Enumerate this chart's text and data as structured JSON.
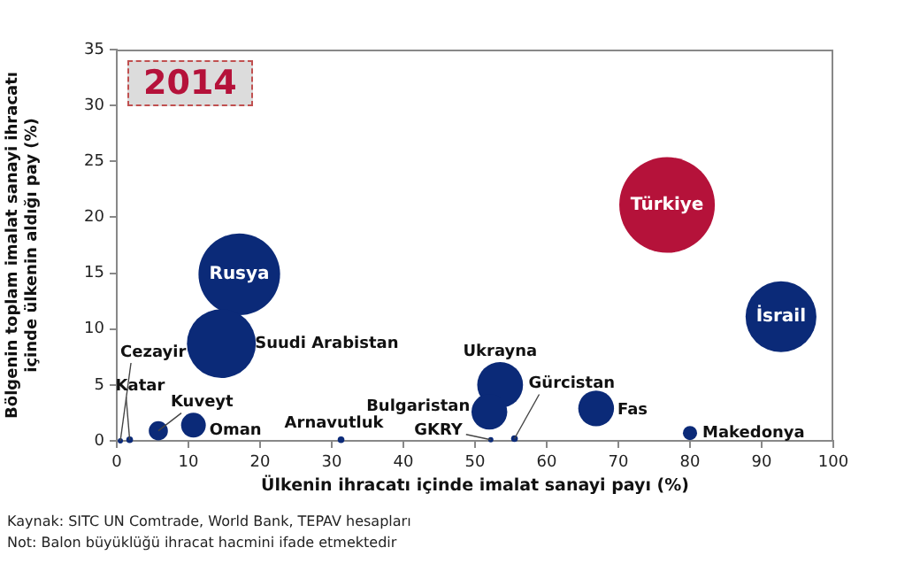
{
  "chart_data": {
    "type": "bubble",
    "title": "2014",
    "xlabel": "Ülkenin ihracatı içinde imalat sanayi payı (%)",
    "ylabel": "Bölgenin toplam imalat sanayi ihracatı\niçinde ülkenin aldığı pay (%)",
    "xlim": [
      0,
      100
    ],
    "xticks": [
      0,
      10,
      20,
      30,
      40,
      50,
      60,
      70,
      80,
      90,
      100
    ],
    "ylim": [
      0,
      35
    ],
    "yticks": [
      0,
      5,
      10,
      15,
      20,
      25,
      30,
      35
    ],
    "grid": false,
    "legend": false,
    "series": [
      {
        "name": "Cezayir",
        "color": "#0b2a78",
        "x": [
          0.5
        ],
        "values": [
          0
        ],
        "sizes": [
          0.003
        ]
      },
      {
        "name": "Katar",
        "color": "#0b2a78",
        "x": [
          1.8
        ],
        "values": [
          0.1
        ],
        "sizes": [
          0.005
        ]
      },
      {
        "name": "Kuveyt",
        "color": "#0b2a78",
        "x": [
          5.8
        ],
        "values": [
          0.9
        ],
        "sizes": [
          0.04
        ]
      },
      {
        "name": "Oman",
        "color": "#0b2a78",
        "x": [
          10.7
        ],
        "values": [
          1.4
        ],
        "sizes": [
          0.067
        ]
      },
      {
        "name": "Suudi Arabistan",
        "color": "#0b2a78",
        "x": [
          14.6
        ],
        "values": [
          8.7
        ],
        "sizes": [
          0.52
        ]
      },
      {
        "name": "Rusya",
        "color": "#0b2a78",
        "x": [
          17.1
        ],
        "values": [
          14.9
        ],
        "sizes": [
          0.73
        ]
      },
      {
        "name": "Arnavutluk",
        "color": "#0b2a78",
        "x": [
          31.3
        ],
        "values": [
          0.1
        ],
        "sizes": [
          0.005
        ]
      },
      {
        "name": "Bulgaristan",
        "color": "#0b2a78",
        "x": [
          52.0
        ],
        "values": [
          2.6
        ],
        "sizes": [
          0.14
        ]
      },
      {
        "name": "GKRY",
        "color": "#0b2a78",
        "x": [
          52.2
        ],
        "values": [
          0.1
        ],
        "sizes": [
          0.003
        ]
      },
      {
        "name": "Ukrayna",
        "color": "#0b2a78",
        "x": [
          53.5
        ],
        "values": [
          5.0
        ],
        "sizes": [
          0.23
        ]
      },
      {
        "name": "Gürcistan",
        "color": "#0b2a78",
        "x": [
          55.5
        ],
        "values": [
          0.2
        ],
        "sizes": [
          0.005
        ]
      },
      {
        "name": "Fas",
        "color": "#0b2a78",
        "x": [
          66.9
        ],
        "values": [
          2.9
        ],
        "sizes": [
          0.14
        ]
      },
      {
        "name": "Türkiye",
        "color": "#b5123a",
        "x": [
          76.8
        ],
        "values": [
          21.1
        ],
        "sizes": [
          1
        ]
      },
      {
        "name": "Makedonya",
        "color": "#0b2a78",
        "x": [
          80.0
        ],
        "values": [
          0.7
        ],
        "sizes": [
          0.022
        ]
      },
      {
        "name": "İsrail",
        "color": "#0b2a78",
        "x": [
          92.7
        ],
        "values": [
          11.1
        ],
        "sizes": [
          0.55
        ]
      }
    ],
    "annotations": [
      "Kaynak: SITC UN Comtrade, World Bank, TEPAV hesapları",
      "Not: Balon büyüklüğü ihracat hacmini ifade etmektedir"
    ]
  }
}
